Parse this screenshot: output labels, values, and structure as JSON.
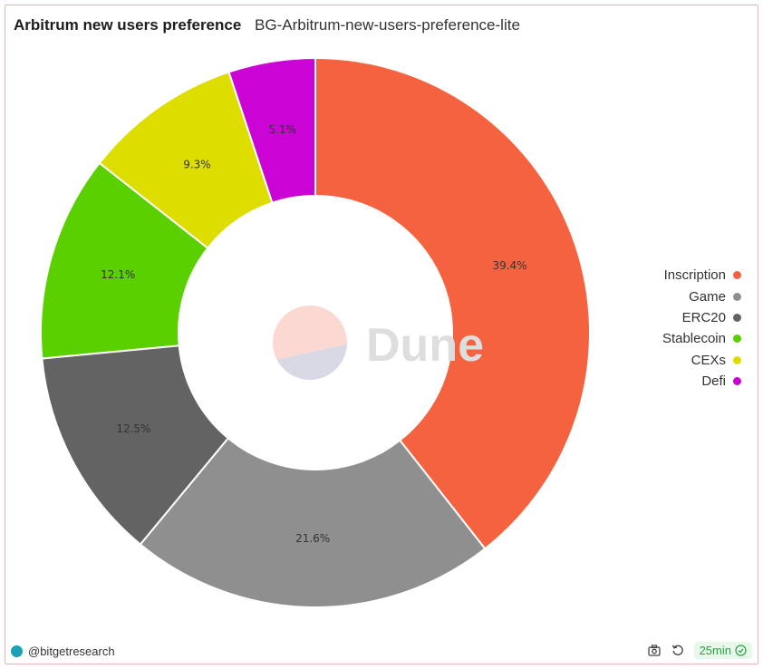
{
  "header": {
    "title": "Arbitrum new users preference",
    "subtitle": "BG-Arbitrum-new-users-preference-lite"
  },
  "chart_data": {
    "type": "pie",
    "style": "donut",
    "categories": [
      "Inscription",
      "Game",
      "ERC20",
      "Stablecoin",
      "CEXs",
      "Defi"
    ],
    "values": [
      39.4,
      21.6,
      12.5,
      12.1,
      9.3,
      5.1
    ],
    "labels": [
      "39.4%",
      "21.6%",
      "12.5%",
      "12.1%",
      "9.3%",
      "5.1%"
    ],
    "colors": [
      "#f4623f",
      "#8f8f8f",
      "#636363",
      "#5ad000",
      "#dedd00",
      "#ca04d5"
    ],
    "legend_position": "right",
    "legend": [
      "Inscription",
      "Game",
      "ERC20",
      "Stablecoin",
      "CEXs",
      "Defi"
    ]
  },
  "watermark": {
    "text": "Dune"
  },
  "footer": {
    "author": "@bitgetresearch",
    "refresh": "25min",
    "icons": [
      "camera-icon",
      "refresh-icon",
      "check-circle-icon"
    ]
  }
}
